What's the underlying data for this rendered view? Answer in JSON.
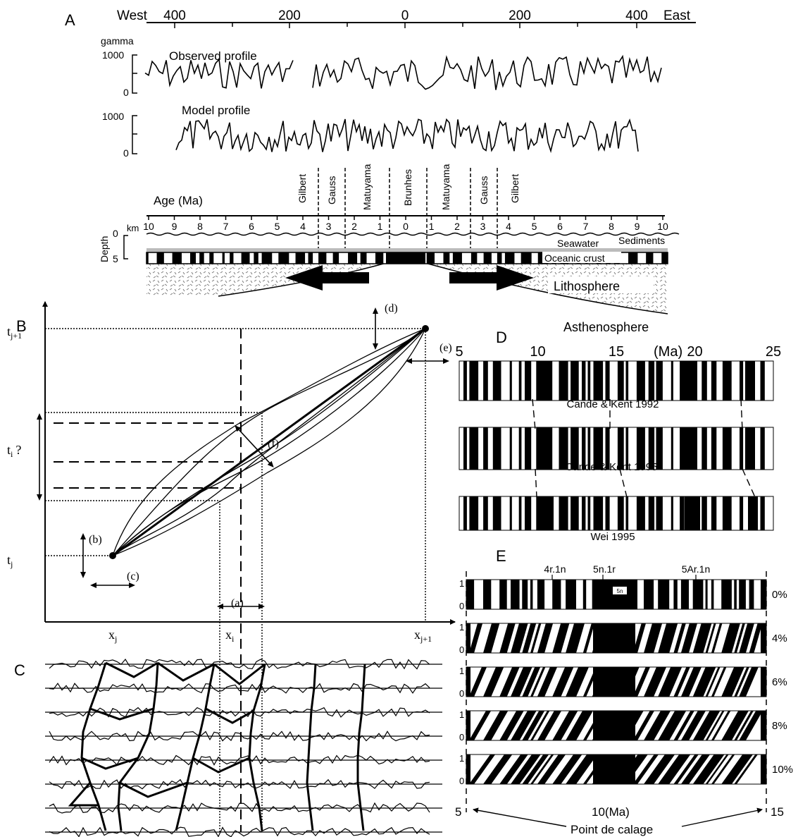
{
  "panel_labels": {
    "a": "A",
    "b": "B",
    "c": "C",
    "d": "D",
    "e": "E"
  },
  "panel_a": {
    "direction_west": "West",
    "direction_east": "East",
    "distance_ticks": [
      "400",
      "200",
      "0",
      "200",
      "400"
    ],
    "unit": "gamma",
    "observed_label": "Observed profile",
    "model_label": "Model profile",
    "y_ticks": [
      "1000",
      "0"
    ],
    "chrons_left": [
      "Gilbert",
      "Gauss",
      "Matuyama"
    ],
    "chron_center": "Brunhes",
    "chrons_right": [
      "Matuyama",
      "Gauss",
      "Gilbert"
    ],
    "age_label": "Age (Ma)",
    "age_ticks": [
      "10",
      "9",
      "8",
      "7",
      "6",
      "5",
      "4",
      "3",
      "2",
      "1",
      "0",
      "1",
      "2",
      "3",
      "4",
      "5",
      "6",
      "7",
      "8",
      "9",
      "10"
    ],
    "depth_label": "Depth",
    "depth_unit": "km",
    "depth_ticks": [
      "0",
      "5"
    ],
    "layer_seawater": "Seawater",
    "layer_sediments": "Sediments",
    "layer_crust": "Oceanic crust",
    "layer_lithosphere": "Lithosphere",
    "layer_asthenosphere": "Asthenosphere"
  },
  "panel_b": {
    "t_top": "t",
    "t_top_sub": "j+1",
    "t_mid": "t",
    "t_mid_sub": "i",
    "t_mid_q": "?",
    "t_bot": "t",
    "t_bot_sub": "j",
    "x_left": "x",
    "x_left_sub": "j",
    "x_mid": "x",
    "x_mid_sub": "i",
    "x_right": "x",
    "x_right_sub": "j+1",
    "annotations": [
      "(a)",
      "(b)",
      "(c)",
      "(d)",
      "(e)",
      "(f)"
    ]
  },
  "panel_d": {
    "axis_ticks": [
      "5",
      "10",
      "15",
      "20",
      "25"
    ],
    "unit": "(Ma)",
    "scales": [
      "Cande & Kent 1992",
      "Cande & Kent 1995",
      "Wei 1995"
    ]
  },
  "panel_e": {
    "chron_labels": [
      "4r.1n",
      "5n.1r",
      "5Ar.1n"
    ],
    "box_label": "5n",
    "percents": [
      "0%",
      "4%",
      "6%",
      "8%",
      "10%"
    ],
    "y_ticks": [
      "1",
      "0"
    ],
    "axis_left": "5",
    "axis_mid": "10(Ma)",
    "axis_right": "15",
    "tie_point_label": "Point de calage"
  }
}
